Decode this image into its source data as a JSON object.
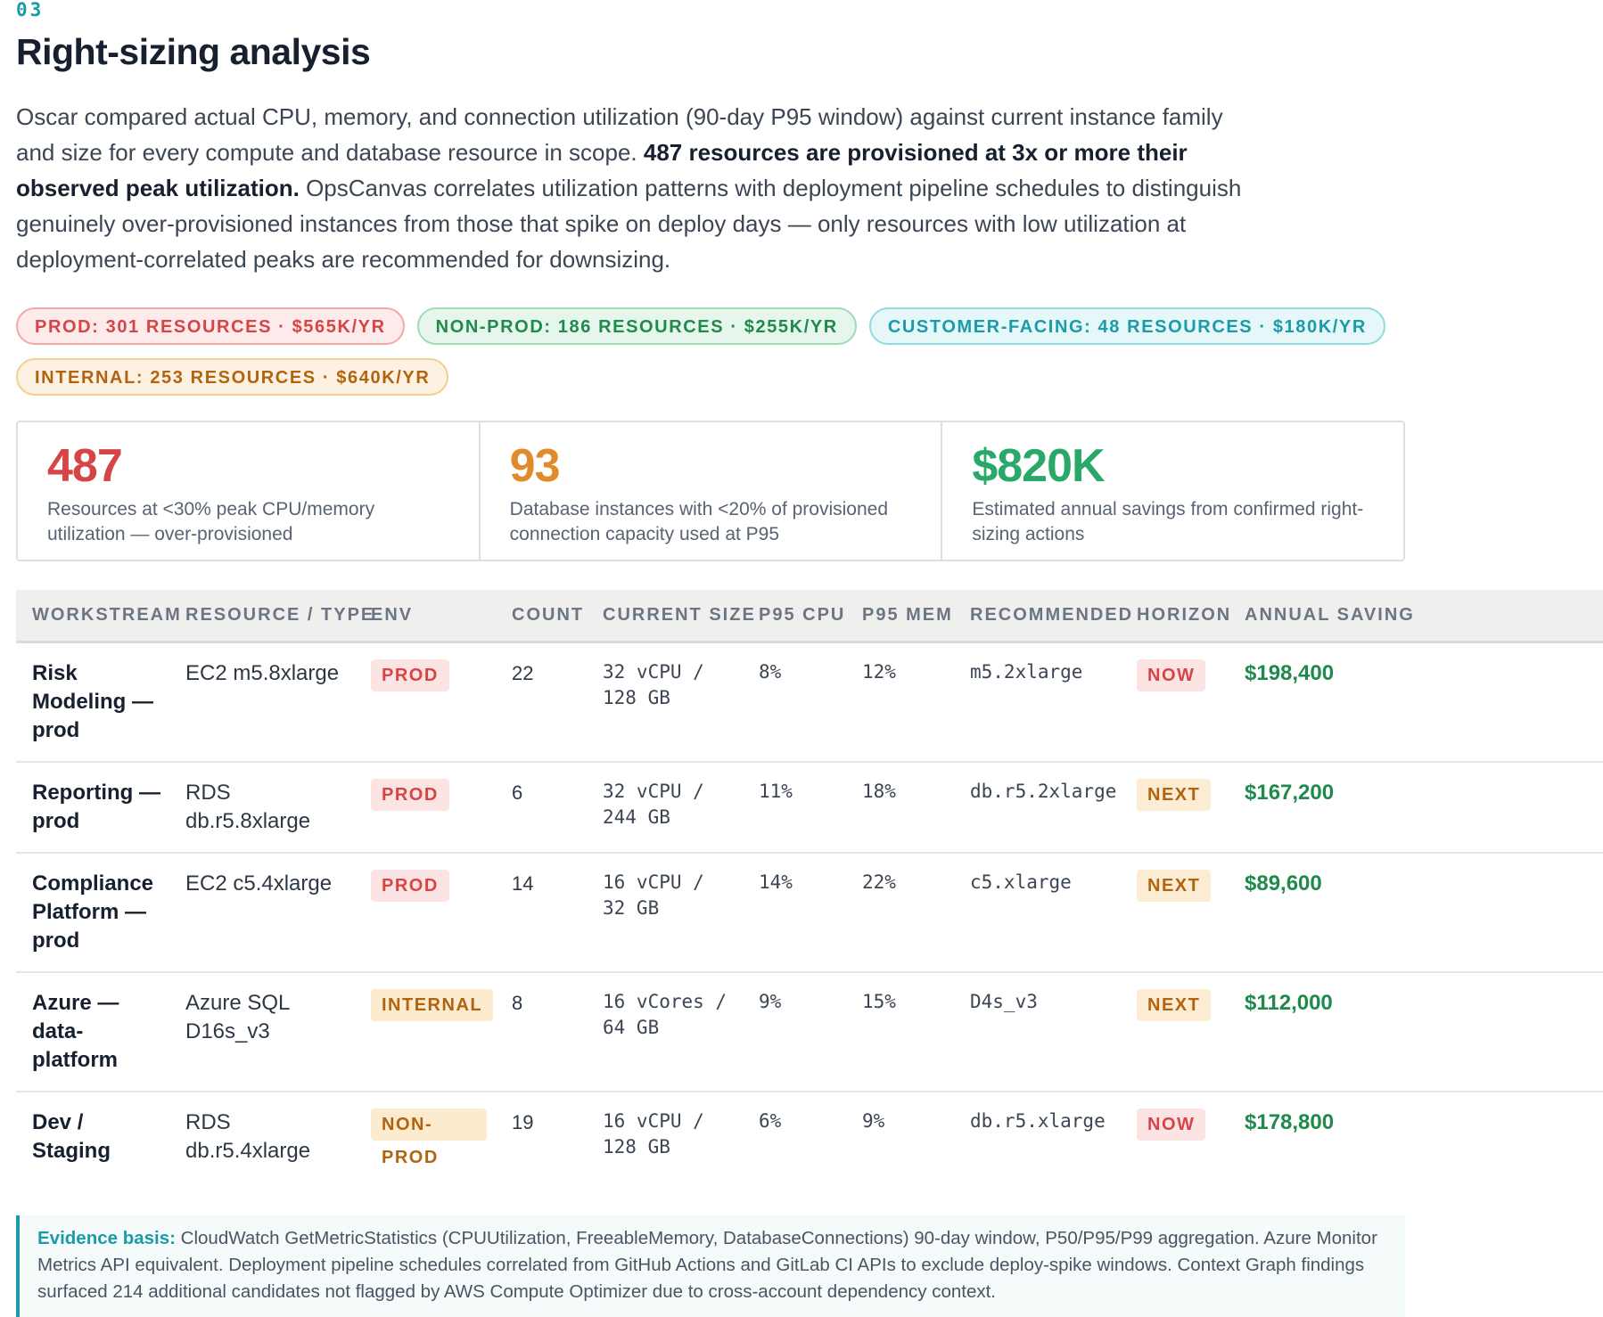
{
  "section_number": "03",
  "title": "Right-sizing analysis",
  "intro": {
    "part1": "Oscar compared actual CPU, memory, and connection utilization (90-day P95 window) against current instance family and size for every compute and database resource in scope. ",
    "strong": "487 resources are provisioned at 3x or more their observed peak utilization.",
    "part2": " OpsCanvas correlates utilization patterns with deployment pipeline schedules to distinguish genuinely over-provisioned instances from those that spike on deploy days — only resources with low utilization at deployment-correlated peaks are recommended for downsizing."
  },
  "chips": [
    {
      "label": "PROD: 301 RESOURCES · $565K/YR",
      "color": "red"
    },
    {
      "label": "NON-PROD: 186 RESOURCES · $255K/YR",
      "color": "green"
    },
    {
      "label": "CUSTOMER-FACING: 48 RESOURCES · $180K/YR",
      "color": "teal"
    },
    {
      "label": "INTERNAL: 253 RESOURCES · $640K/YR",
      "color": "amber"
    }
  ],
  "stats": [
    {
      "value": "487",
      "label": "Resources at <30% peak CPU/memory utilization — over-provisioned",
      "color": "#d64545"
    },
    {
      "value": "93",
      "label": "Database instances with <20% of provisioned connection capacity used at P95",
      "color": "#e08c2c"
    },
    {
      "value": "$820K",
      "label": "Estimated annual savings from confirmed right-sizing actions",
      "color": "#2aa86a"
    }
  ],
  "table": {
    "headers": [
      "WORKSTREAM",
      "RESOURCE / TYPE",
      "ENV",
      "COUNT",
      "CURRENT SIZE",
      "P95 CPU",
      "P95 MEM",
      "RECOMMENDED",
      "HORIZON",
      "ANNUAL SAVING"
    ],
    "rows": [
      {
        "workstream": "Risk Modeling — prod",
        "resource": "EC2 m5.8xlarge",
        "env": "PROD",
        "count": "22",
        "current_size": "32 vCPU / 128 GB",
        "p95_cpu": "8%",
        "p95_mem": "12%",
        "recommended": "m5.2xlarge",
        "horizon": "NOW",
        "saving": "$198,400"
      },
      {
        "workstream": "Reporting — prod",
        "resource": "RDS db.r5.8xlarge",
        "env": "PROD",
        "count": "6",
        "current_size": "32 vCPU / 244 GB",
        "p95_cpu": "11%",
        "p95_mem": "18%",
        "recommended": "db.r5.2xlarge",
        "horizon": "NEXT",
        "saving": "$167,200"
      },
      {
        "workstream": "Compliance Platform — prod",
        "resource": "EC2 c5.4xlarge",
        "env": "PROD",
        "count": "14",
        "current_size": "16 vCPU / 32 GB",
        "p95_cpu": "14%",
        "p95_mem": "22%",
        "recommended": "c5.xlarge",
        "horizon": "NEXT",
        "saving": "$89,600"
      },
      {
        "workstream": "Azure — data-platform",
        "resource": "Azure SQL D16s_v3",
        "env": "INTERNAL",
        "count": "8",
        "current_size": "16 vCores / 64 GB",
        "p95_cpu": "9%",
        "p95_mem": "15%",
        "recommended": "D4s_v3",
        "horizon": "NEXT",
        "saving": "$112,000"
      },
      {
        "workstream": "Dev / Staging",
        "resource": "RDS db.r5.4xlarge",
        "env": "NON-PROD",
        "count": "19",
        "current_size": "16 vCPU / 128 GB",
        "p95_cpu": "6%",
        "p95_mem": "9%",
        "recommended": "db.r5.xlarge",
        "horizon": "NOW",
        "saving": "$178,800"
      }
    ]
  },
  "evidence": {
    "label": "Evidence basis:",
    "text": " CloudWatch GetMetricStatistics (CPUUtilization, FreeableMemory, DatabaseConnections) 90-day window, P50/P95/P99 aggregation. Azure Monitor Metrics API equivalent. Deployment pipeline schedules correlated from GitHub Actions and GitLab CI APIs to exclude deploy-spike windows. Context Graph findings surfaced 214 additional candidates not flagged by AWS Compute Optimizer due to cross-account dependency context."
  }
}
